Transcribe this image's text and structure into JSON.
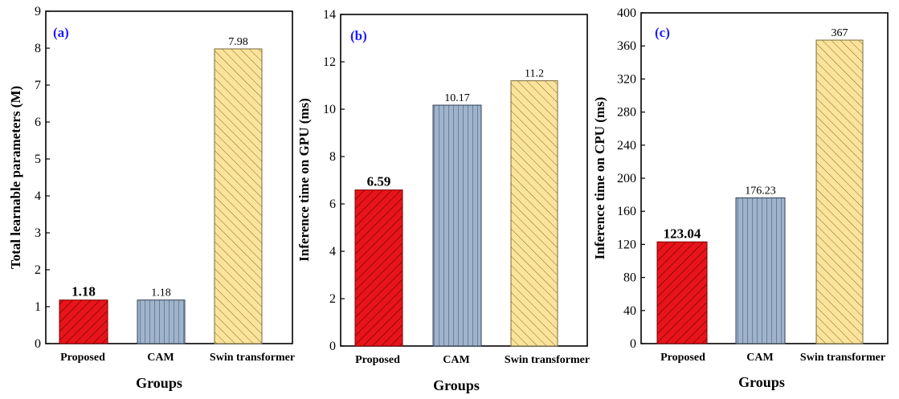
{
  "chart_data": [
    {
      "type": "bar",
      "panel_label": "(a)",
      "categories": [
        "Proposed",
        "CAM",
        "Swin transformer"
      ],
      "values": [
        1.18,
        1.18,
        7.98
      ],
      "value_labels": [
        "1.18",
        "1.18",
        "7.98"
      ],
      "bold_labels": [
        true,
        false,
        false
      ],
      "xlabel": "Groups",
      "ylabel": "Total learnable parameters (M)",
      "ylim": [
        0,
        9
      ],
      "yticks": [
        0,
        1,
        2,
        3,
        4,
        5,
        6,
        7,
        8,
        9
      ],
      "ytick_labels": [
        "0",
        "1",
        "2",
        "3",
        "4",
        "5",
        "6",
        "7",
        "8",
        "9"
      ],
      "grid": false
    },
    {
      "type": "bar",
      "panel_label": "(b)",
      "categories": [
        "Proposed",
        "CAM",
        "Swin transformer"
      ],
      "values": [
        6.59,
        10.17,
        11.2
      ],
      "value_labels": [
        "6.59",
        "10.17",
        "11.2"
      ],
      "bold_labels": [
        true,
        false,
        false
      ],
      "xlabel": "Groups",
      "ylabel": "Inference time on GPU (ms)",
      "ylim": [
        0,
        14
      ],
      "yticks": [
        0,
        2,
        4,
        6,
        8,
        10,
        12,
        14
      ],
      "ytick_labels": [
        "0",
        "2",
        "4",
        "6",
        "8",
        "10",
        "12",
        "14"
      ],
      "grid": false
    },
    {
      "type": "bar",
      "panel_label": "(c)",
      "categories": [
        "Proposed",
        "CAM",
        "Swin transformer"
      ],
      "values": [
        123.04,
        176.23,
        367
      ],
      "value_labels": [
        "123.04",
        "176.23",
        "367"
      ],
      "bold_labels": [
        true,
        false,
        false
      ],
      "xlabel": "Groups",
      "ylabel": "Inference time on CPU (ms)",
      "ylim": [
        0,
        400
      ],
      "yticks": [
        0,
        40,
        80,
        120,
        160,
        200,
        240,
        280,
        320,
        360,
        400
      ],
      "ytick_labels": [
        "0",
        "40",
        "80",
        "120",
        "160",
        "200",
        "240",
        "280",
        "320",
        "360",
        "400"
      ],
      "grid": false
    }
  ],
  "colors": {
    "proposed_fill": "#e8141b",
    "proposed_border": "#7a0000",
    "cam_fill": "#9fb4cc",
    "cam_border": "#2f3f55",
    "swin_fill": "#fbe39a",
    "swin_border": "#7a6a3a",
    "panel_tag": "#1a1aff"
  },
  "icons": {
    "proposed_pattern": "diagonal-hatch",
    "cam_pattern": "vertical-hatch",
    "swin_pattern": "diagonal-hatch-back"
  }
}
